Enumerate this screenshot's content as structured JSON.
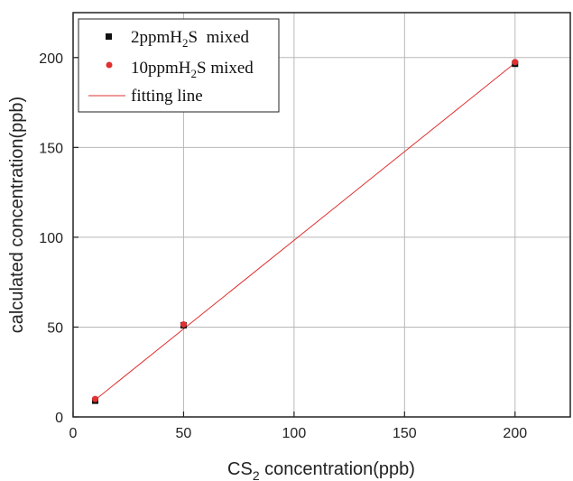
{
  "chart_data": {
    "type": "scatter",
    "xlabel_main": "CS",
    "xlabel_sub": "2",
    "xlabel_tail": " concentration(ppb)",
    "ylabel": "calculated concentration(ppb)",
    "xlim": [
      0,
      225
    ],
    "ylim": [
      0,
      225
    ],
    "xticks": [
      0,
      50,
      100,
      150,
      200
    ],
    "yticks": [
      0,
      50,
      100,
      150,
      200
    ],
    "grid": true,
    "legend_position": "top-left",
    "series": [
      {
        "name_main": "2ppmH",
        "name_sub": "2",
        "name_tail": "S  mixed",
        "marker": "square",
        "color": "#111111",
        "x": [
          10,
          50,
          200
        ],
        "y": [
          9,
          51,
          196.5
        ]
      },
      {
        "name_main": "10ppmH",
        "name_sub": "2",
        "name_tail": "S mixed",
        "marker": "circle",
        "color": "#e03030",
        "x": [
          10,
          50,
          200
        ],
        "y": [
          10,
          51.5,
          197.5
        ]
      },
      {
        "name": "fitting line",
        "type": "line",
        "color": "#e03030",
        "x": [
          10,
          200
        ],
        "y": [
          9.5,
          197
        ]
      }
    ]
  }
}
